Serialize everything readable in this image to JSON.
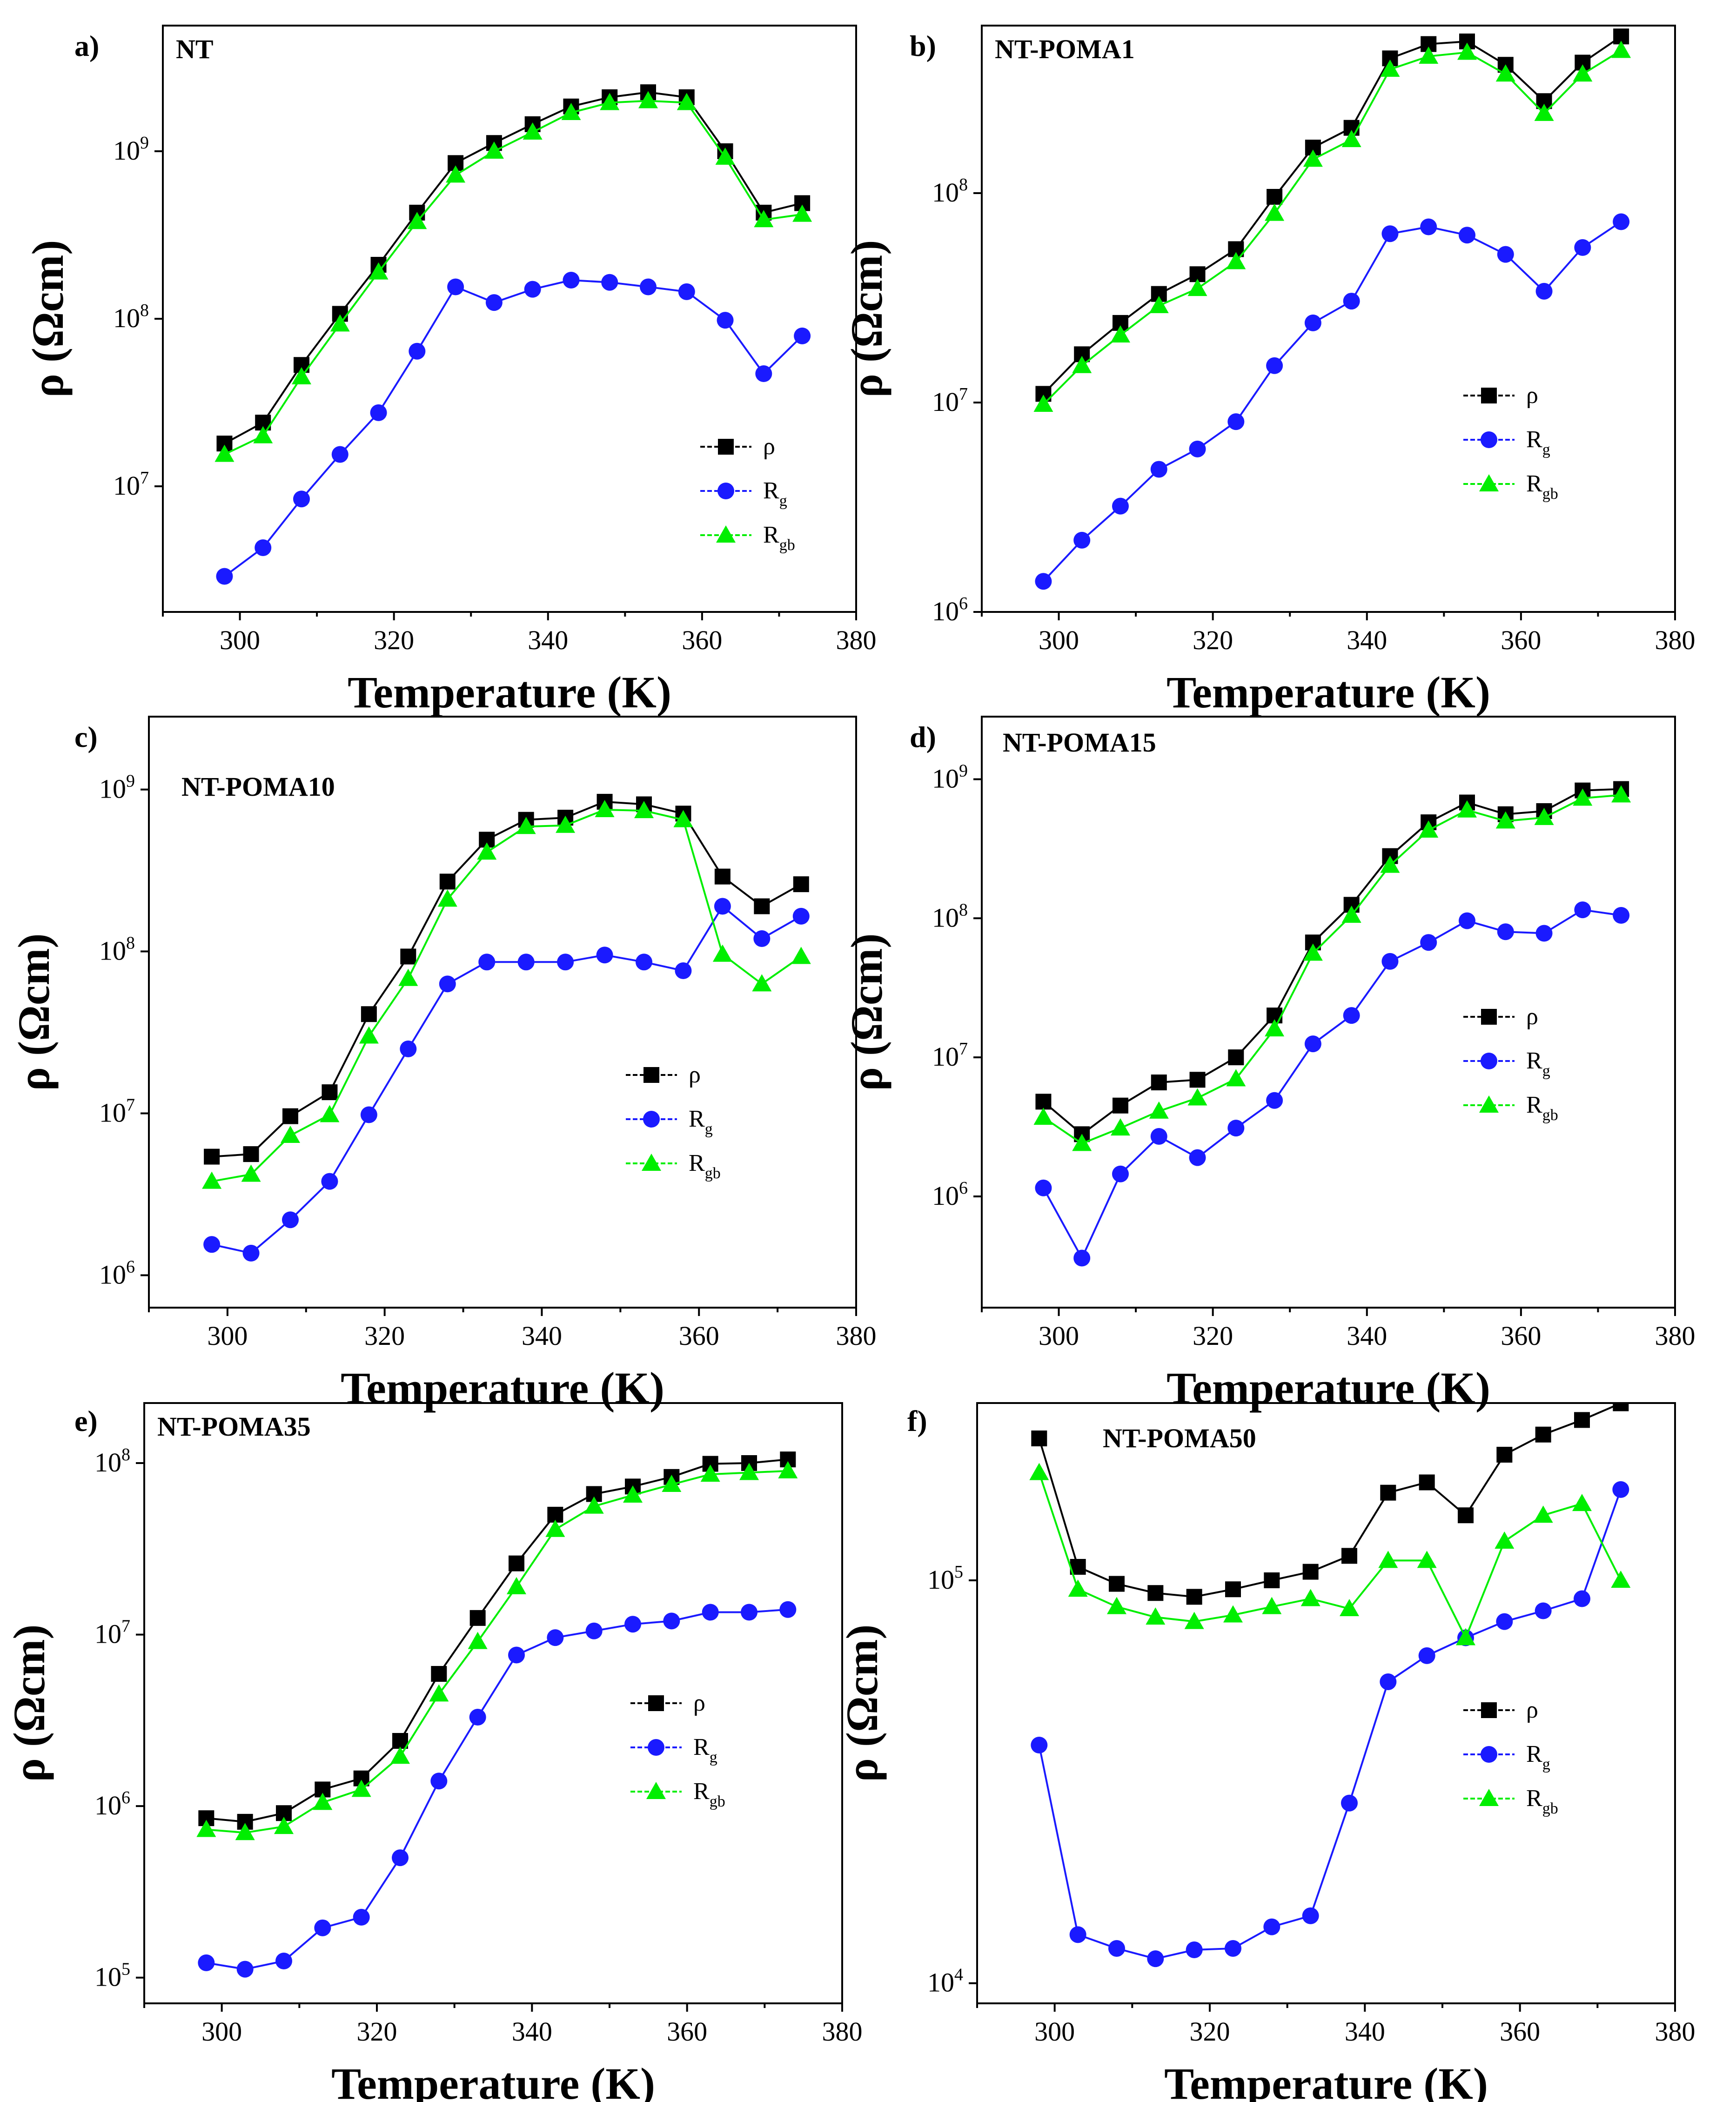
{
  "chart_data": [
    {
      "panel_label": "a)",
      "title": "NT",
      "type": "line",
      "xlabel": "Temperature (K)",
      "ylabel": "ρ (Ωcm)",
      "xlim": [
        290,
        380
      ],
      "xticks": [
        300,
        320,
        340,
        360,
        380
      ],
      "yscale": "log",
      "ylim_exp": [
        6.25,
        9.75
      ],
      "yticks_exp": [
        7,
        8,
        9
      ],
      "x": [
        298,
        303,
        308,
        313,
        318,
        323,
        328,
        333,
        338,
        343,
        348,
        353,
        358,
        363,
        368,
        373
      ],
      "series": [
        {
          "name": "ρ",
          "sub": "",
          "color": "#000000",
          "marker": "square",
          "values": [
            18000000.0,
            24000000.0,
            53000000.0,
            107000000.0,
            210000000.0,
            430000000.0,
            850000000.0,
            1120000000.0,
            1450000000.0,
            1850000000.0,
            2100000000.0,
            2250000000.0,
            2100000000.0,
            1000000000.0,
            430000000.0,
            490000000.0
          ]
        },
        {
          "name": "R",
          "sub": "g",
          "color": "#1a1aff",
          "marker": "circle",
          "values": [
            2900000.0,
            4300000.0,
            8400000.0,
            15500000.0,
            27500000.0,
            64000000.0,
            155000000.0,
            125000000.0,
            150000000.0,
            170000000.0,
            165000000.0,
            155000000.0,
            145000000.0,
            98000000.0,
            47000000.0,
            79000000.0
          ]
        },
        {
          "name": "R",
          "sub": "gb",
          "color": "#00ee00",
          "marker": "triangle",
          "values": [
            15500000.0,
            20000000.0,
            45000000.0,
            93000000.0,
            190000000.0,
            380000000.0,
            720000000.0,
            1000000000.0,
            1300000000.0,
            1700000000.0,
            1950000000.0,
            2000000000.0,
            1950000000.0,
            920000000.0,
            390000000.0,
            420000000.0
          ]
        }
      ]
    },
    {
      "panel_label": "b)",
      "title": "NT-POMA1",
      "type": "line",
      "xlabel": "Temperature (K)",
      "ylabel": "ρ (Ωcm)",
      "xlim": [
        290,
        380
      ],
      "xticks": [
        300,
        320,
        340,
        360,
        380
      ],
      "yscale": "log",
      "ylim_exp": [
        6,
        8.8
      ],
      "yticks_exp": [
        6,
        7,
        8
      ],
      "x": [
        298,
        303,
        308,
        313,
        318,
        323,
        328,
        333,
        338,
        343,
        348,
        353,
        358,
        363,
        368,
        373
      ],
      "series": [
        {
          "name": "ρ",
          "sub": "",
          "color": "#000000",
          "marker": "square",
          "values": [
            11000000.0,
            17000000.0,
            24000000.0,
            33000000.0,
            41000000.0,
            54000000.0,
            96000000.0,
            165000000.0,
            205000000.0,
            440000000.0,
            515000000.0,
            530000000.0,
            410000000.0,
            275000000.0,
            420000000.0,
            560000000.0
          ]
        },
        {
          "name": "R",
          "sub": "g",
          "color": "#1a1aff",
          "marker": "circle",
          "values": [
            1400000.0,
            2200000.0,
            3200000.0,
            4800000.0,
            6000000.0,
            8100000.0,
            15000000.0,
            24000000.0,
            30500000.0,
            64000000.0,
            69000000.0,
            63000000.0,
            51000000.0,
            34000000.0,
            55000000.0,
            73000000.0
          ]
        },
        {
          "name": "R",
          "sub": "gb",
          "color": "#00ee00",
          "marker": "triangle",
          "values": [
            9800000.0,
            15000000.0,
            21000000.0,
            29000000.0,
            35000000.0,
            47000000.0,
            80000000.0,
            145000000.0,
            180000000.0,
            390000000.0,
            450000000.0,
            470000000.0,
            370000000.0,
            240000000.0,
            370000000.0,
            480000000.0
          ]
        }
      ]
    },
    {
      "panel_label": "c)",
      "title": "NT-POMA10",
      "type": "line",
      "xlabel": "Temperature (K)",
      "ylabel": "ρ (Ωcm)",
      "xlim": [
        290,
        380
      ],
      "xticks": [
        300,
        320,
        340,
        360,
        380
      ],
      "yscale": "log",
      "ylim_exp": [
        5.8,
        9.45
      ],
      "yticks_exp": [
        6,
        7,
        8,
        9
      ],
      "x": [
        298,
        303,
        308,
        313,
        318,
        323,
        328,
        333,
        338,
        343,
        348,
        353,
        358,
        363,
        368,
        373
      ],
      "series": [
        {
          "name": "ρ",
          "sub": "",
          "color": "#000000",
          "marker": "square",
          "values": [
            5400000.0,
            5600000.0,
            9600000.0,
            13500000.0,
            41000000.0,
            93000000.0,
            270000000.0,
            490000000.0,
            650000000.0,
            670000000.0,
            840000000.0,
            810000000.0,
            710000000.0,
            290000000.0,
            190000000.0,
            260000000.0
          ]
        },
        {
          "name": "R",
          "sub": "g",
          "color": "#1a1aff",
          "marker": "circle",
          "values": [
            1550000.0,
            1370000.0,
            2200000.0,
            3800000.0,
            9800000.0,
            25000000.0,
            63000000.0,
            86000000.0,
            86000000.0,
            86000000.0,
            95000000.0,
            86000000.0,
            76000000.0,
            190000000.0,
            120000000.0,
            165000000.0
          ]
        },
        {
          "name": "R",
          "sub": "gb",
          "color": "#00ee00",
          "marker": "triangle",
          "values": [
            3800000.0,
            4200000.0,
            7300000.0,
            9800000.0,
            30000000.0,
            68000000.0,
            210000000.0,
            410000000.0,
            590000000.0,
            600000000.0,
            750000000.0,
            740000000.0,
            650000000.0,
            96000000.0,
            63000000.0,
            93000000.0
          ]
        }
      ]
    },
    {
      "panel_label": "d)",
      "title": "NT-POMA15",
      "type": "line",
      "xlabel": "Temperature (K)",
      "ylabel": "ρ (Ωcm)",
      "xlim": [
        290,
        380
      ],
      "xticks": [
        300,
        320,
        340,
        360,
        380
      ],
      "yscale": "log",
      "ylim_exp": [
        5.2,
        9.45
      ],
      "yticks_exp": [
        6,
        7,
        8,
        9
      ],
      "x": [
        298,
        303,
        308,
        313,
        318,
        323,
        328,
        333,
        338,
        343,
        348,
        353,
        358,
        363,
        368,
        373
      ],
      "series": [
        {
          "name": "ρ",
          "sub": "",
          "color": "#000000",
          "marker": "square",
          "values": [
            4800000.0,
            2800000.0,
            4500000.0,
            6600000.0,
            6900000.0,
            10000000.0,
            20000000.0,
            67000000.0,
            125000000.0,
            280000000.0,
            490000000.0,
            680000000.0,
            560000000.0,
            590000000.0,
            830000000.0,
            850000000.0
          ]
        },
        {
          "name": "R",
          "sub": "g",
          "color": "#1a1aff",
          "marker": "circle",
          "values": [
            1150000.0,
            360000.0,
            1450000.0,
            2700000.0,
            1900000.0,
            3100000.0,
            4900000.0,
            12500000.0,
            20000000.0,
            49000000.0,
            67000000.0,
            96000000.0,
            80000000.0,
            78000000.0,
            115000000.0,
            105000000.0
          ]
        },
        {
          "name": "R",
          "sub": "gb",
          "color": "#00ee00",
          "marker": "triangle",
          "values": [
            3700000.0,
            2400000.0,
            3100000.0,
            4100000.0,
            5100000.0,
            7000000.0,
            16000000.0,
            56000000.0,
            105000000.0,
            240000000.0,
            430000000.0,
            600000000.0,
            500000000.0,
            530000000.0,
            730000000.0,
            770000000.0
          ]
        }
      ]
    },
    {
      "panel_label": "e)",
      "title": "NT-POMA35",
      "type": "line",
      "xlabel": "Temperature (K)",
      "ylabel": "ρ (Ωcm)",
      "xlim": [
        290,
        380
      ],
      "xticks": [
        300,
        320,
        340,
        360,
        380
      ],
      "yscale": "log",
      "ylim_exp": [
        4.85,
        8.35
      ],
      "yticks_exp": [
        5,
        6,
        7,
        8
      ],
      "x": [
        298,
        303,
        308,
        313,
        318,
        323,
        328,
        333,
        338,
        343,
        348,
        353,
        358,
        363,
        368,
        373
      ],
      "series": [
        {
          "name": "ρ",
          "sub": "",
          "color": "#000000",
          "marker": "square",
          "values": [
            850000.0,
            810000.0,
            910000.0,
            1250000.0,
            1450000.0,
            2400000.0,
            5900000.0,
            12500000.0,
            26000000.0,
            50000000.0,
            66000000.0,
            73000000.0,
            83000000.0,
            99000000.0,
            100000000.0,
            105000000.0
          ]
        },
        {
          "name": "R",
          "sub": "g",
          "color": "#1a1aff",
          "marker": "circle",
          "values": [
            122000.0,
            112000.0,
            125000.0,
            195000.0,
            225000.0,
            500000.0,
            1400000.0,
            3300000.0,
            7600000.0,
            9600000.0,
            10500000.0,
            11500000.0,
            12000000.0,
            13500000.0,
            13500000.0,
            14000000.0
          ]
        },
        {
          "name": "R",
          "sub": "gb",
          "color": "#00ee00",
          "marker": "triangle",
          "values": [
            730000.0,
            700000.0,
            760000.0,
            1050000.0,
            1250000.0,
            1950000.0,
            4500000.0,
            9100000.0,
            19000000.0,
            41000000.0,
            56000000.0,
            65000000.0,
            75000000.0,
            86000000.0,
            88000000.0,
            90000000.0
          ]
        }
      ]
    },
    {
      "panel_label": "f)",
      "title": "NT-POMA50",
      "type": "line",
      "xlabel": "Temperature (K)",
      "ylabel": "ρ (Ωcm)",
      "xlim": [
        290,
        380
      ],
      "xticks": [
        300,
        320,
        340,
        360,
        380
      ],
      "yscale": "log",
      "ylim_exp": [
        3.95,
        5.44
      ],
      "yticks_exp": [
        4,
        5
      ],
      "x": [
        298,
        303,
        308,
        313,
        318,
        323,
        328,
        333,
        338,
        343,
        348,
        353,
        358,
        363,
        368,
        373
      ],
      "series": [
        {
          "name": "ρ",
          "sub": "",
          "color": "#000000",
          "marker": "square",
          "values": [
            225000.0,
            108000.0,
            98000.0,
            93000.0,
            91000.0,
            95000.0,
            100000.0,
            105000.0,
            115000.0,
            165000.0,
            175000.0,
            145000.0,
            205000.0,
            230000.0,
            250000.0,
            275000.0
          ]
        },
        {
          "name": "R",
          "sub": "g",
          "color": "#1a1aff",
          "marker": "circle",
          "values": [
            39000.0,
            13200.0,
            12200.0,
            11500.0,
            12100.0,
            12200.0,
            13800.0,
            14700.0,
            28000.0,
            56000.0,
            65000.0,
            72000.0,
            79000.0,
            84000.0,
            90000.0,
            168000.0
          ]
        },
        {
          "name": "R",
          "sub": "gb",
          "color": "#00ee00",
          "marker": "triangle",
          "values": [
            185000.0,
            95000.0,
            86000.0,
            81000.0,
            79000.0,
            82000.0,
            86000.0,
            90000.0,
            85000.0,
            112000.0,
            112000.0,
            72000.0,
            125000.0,
            145000.0,
            155000.0,
            100000.0
          ]
        }
      ]
    }
  ]
}
